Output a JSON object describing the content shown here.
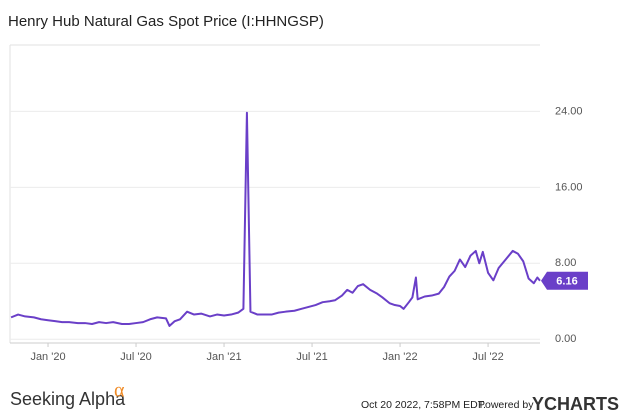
{
  "chart_data": {
    "type": "line",
    "title": "Henry Hub Natural Gas Spot Price (I:HHNGSP)",
    "x": [
      2019.79,
      2019.83,
      2019.87,
      2019.92,
      2019.96,
      2020.0,
      2020.04,
      2020.08,
      2020.12,
      2020.17,
      2020.21,
      2020.25,
      2020.29,
      2020.33,
      2020.37,
      2020.42,
      2020.46,
      2020.5,
      2020.54,
      2020.58,
      2020.62,
      2020.67,
      2020.69,
      2020.72,
      2020.75,
      2020.79,
      2020.83,
      2020.87,
      2020.92,
      2020.96,
      2021.0,
      2021.04,
      2021.08,
      2021.11,
      2021.13,
      2021.15,
      2021.19,
      2021.23,
      2021.27,
      2021.31,
      2021.35,
      2021.4,
      2021.44,
      2021.48,
      2021.52,
      2021.56,
      2021.6,
      2021.63,
      2021.67,
      2021.7,
      2021.73,
      2021.76,
      2021.79,
      2021.83,
      2021.87,
      2021.9,
      2021.94,
      2021.97,
      2022.0,
      2022.02,
      2022.05,
      2022.07,
      2022.09,
      2022.1,
      2022.14,
      2022.18,
      2022.22,
      2022.25,
      2022.28,
      2022.31,
      2022.34,
      2022.37,
      2022.4,
      2022.43,
      2022.45,
      2022.47,
      2022.5,
      2022.53,
      2022.56,
      2022.6,
      2022.64,
      2022.67,
      2022.7,
      2022.73,
      2022.76,
      2022.78,
      2022.795
    ],
    "series": [
      {
        "name": "Henry Hub Natural Gas Spot Price",
        "color": "#6a3fc8",
        "values": [
          2.3,
          2.6,
          2.4,
          2.3,
          2.1,
          2.0,
          1.9,
          1.8,
          1.8,
          1.7,
          1.7,
          1.6,
          1.8,
          1.7,
          1.8,
          1.6,
          1.6,
          1.7,
          1.8,
          2.1,
          2.3,
          2.2,
          1.4,
          1.9,
          2.1,
          2.9,
          2.6,
          2.7,
          2.4,
          2.6,
          2.5,
          2.6,
          2.8,
          3.2,
          23.86,
          2.9,
          2.6,
          2.6,
          2.6,
          2.8,
          2.9,
          3.0,
          3.2,
          3.4,
          3.6,
          3.9,
          4.0,
          4.1,
          4.6,
          5.2,
          4.9,
          5.6,
          5.8,
          5.2,
          4.8,
          4.4,
          3.8,
          3.6,
          3.5,
          3.2,
          3.9,
          4.4,
          6.5,
          4.2,
          4.5,
          4.6,
          4.8,
          5.5,
          6.6,
          7.2,
          8.4,
          7.6,
          8.8,
          9.3,
          8.0,
          9.2,
          7.0,
          6.2,
          7.5,
          8.4,
          9.3,
          9.0,
          8.2,
          6.4,
          5.9,
          6.5,
          6.16
        ]
      }
    ],
    "xlim": [
      2019.784,
      2022.795
    ],
    "xticks": [
      {
        "value": 2020,
        "label": "Jan '20"
      },
      {
        "value": 2020.5,
        "label": "Jul '20"
      },
      {
        "value": 2021,
        "label": "Jan '21"
      },
      {
        "value": 2021.5,
        "label": "Jul '21"
      },
      {
        "value": 2022,
        "label": "Jan '22"
      },
      {
        "value": 2022.5,
        "label": "Jul '22"
      }
    ],
    "ylim": [
      -0.4,
      31
    ],
    "yticks": [
      {
        "value": 0,
        "label": "0.00"
      },
      {
        "value": 8,
        "label": "8.00"
      },
      {
        "value": 16,
        "label": "16.00"
      },
      {
        "value": 24,
        "label": "24.00"
      }
    ],
    "grid": true
  },
  "footer": {
    "source": "Seeking Alpha",
    "alpha": "α",
    "timestamp": "Oct 20 2022, 7:58PM EDT.",
    "powered_by": "Powered by",
    "brand": "YCHARTS"
  }
}
